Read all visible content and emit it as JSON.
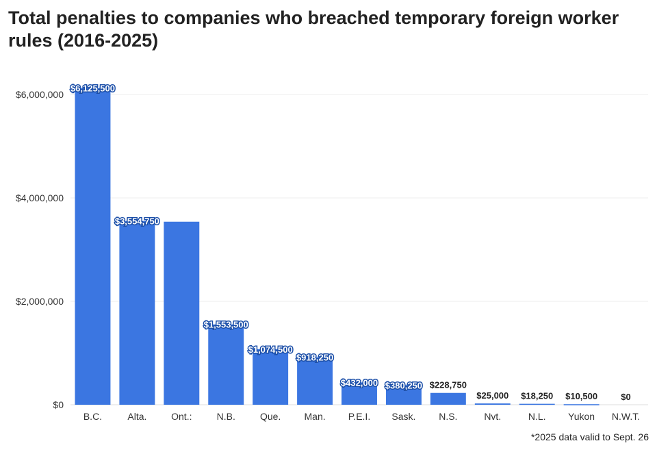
{
  "chart_data": {
    "type": "bar",
    "title": "Total penalties to companies who breached temporary foreign worker rules (2016-2025)",
    "xlabel": "",
    "ylabel": "",
    "ylim": [
      0,
      6000000
    ],
    "yticks": [
      0,
      2000000,
      4000000,
      6000000
    ],
    "ytick_labels": [
      "$0",
      "$2,000,000",
      "$4,000,000",
      "$6,000,000"
    ],
    "grid": true,
    "categories": [
      "B.C.",
      "Alta.",
      "Ont.:",
      "N.B.",
      "Que.",
      "Man.",
      "P.E.I.",
      "Sask.",
      "N.S.",
      "Nvt.",
      "N.L.",
      "Yukon",
      "N.W.T."
    ],
    "values": [
      6125500,
      3554750,
      3540000,
      1553500,
      1074500,
      918250,
      432000,
      380250,
      228750,
      25000,
      18250,
      10500,
      0
    ],
    "data_labels": [
      "$6,125,500",
      "$3,554,750",
      null,
      "$1,553,500",
      "$1,074,500",
      "$918,250",
      "$432,000",
      "$380,250",
      "$228,750",
      "$25,000",
      "$18,250",
      "$10,500",
      "$0"
    ],
    "bar_color": "#3b76e1",
    "footnote": "*2025 data valid to Sept. 26"
  }
}
